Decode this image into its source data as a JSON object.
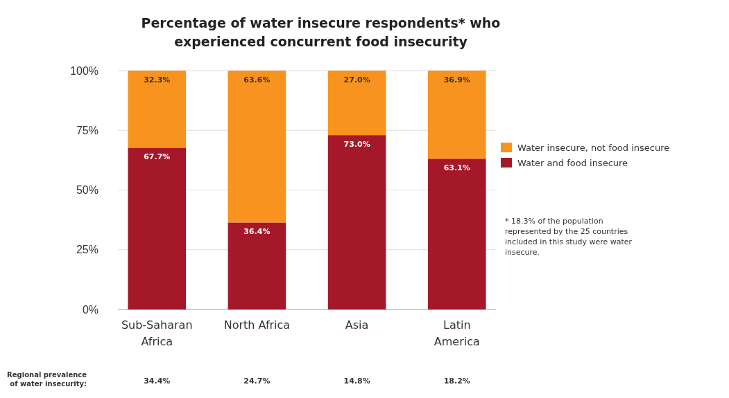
{
  "chart_data": {
    "type": "bar",
    "stacked": true,
    "title": "Percentage of water insecure respondents* who experienced concurrent food insecurity",
    "categories": [
      "Sub-Saharan Africa",
      "North Africa",
      "Asia",
      "Latin America"
    ],
    "series": [
      {
        "name": "Water and food insecure",
        "color": "#a5182a",
        "values": [
          67.7,
          36.4,
          73.0,
          63.1
        ],
        "value_labels": [
          "67.7%",
          "36.4%",
          "73.0%",
          "63.1%"
        ]
      },
      {
        "name": "Water insecure, not food insecure",
        "color": "#f7931e",
        "values": [
          32.3,
          63.6,
          27.0,
          36.9
        ],
        "value_labels": [
          "32.3%",
          "63.6%",
          "27.0%",
          "36.9%"
        ]
      }
    ],
    "ylim": [
      0,
      100
    ],
    "yticks": [
      {
        "value": 0,
        "label": "0%"
      },
      {
        "value": 25,
        "label": "25%"
      },
      {
        "value": 50,
        "label": "50%"
      },
      {
        "value": 75,
        "label": "75%"
      },
      {
        "value": 100,
        "label": "100%"
      }
    ],
    "grid": "y",
    "legend": "right",
    "annotations": [
      "* 18.3% of the population represented by the 25 countries included in this study were water insecure.",
      "Regional prevalence of water insecurity:",
      "34.4%",
      "24.7%",
      "14.8%",
      "18.2%"
    ]
  }
}
